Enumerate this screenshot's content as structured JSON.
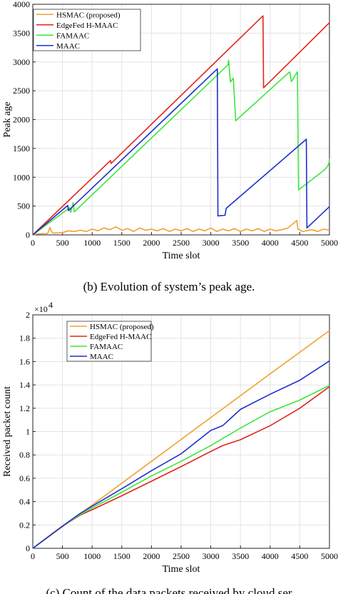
{
  "charts": [
    {
      "type": "line",
      "caption": "(b) Evolution of system’s peak age.",
      "xlabel": "Time slot",
      "ylabel": "Peak age",
      "xlim": [
        0,
        5000
      ],
      "ylim": [
        0,
        4000
      ],
      "xticks": [
        "0",
        "500",
        "1000",
        "1500",
        "2000",
        "2500",
        "3000",
        "3500",
        "4000",
        "4500",
        "5000"
      ],
      "yticks": [
        "0",
        "500",
        "1000",
        "1500",
        "2000",
        "2500",
        "3000",
        "3500",
        "4000"
      ],
      "grid": true,
      "legend_position": "top-left",
      "series": [
        {
          "name": "HSMAC (proposed)",
          "color": "#F0A030",
          "points": [
            [
              0,
              0
            ],
            [
              60,
              15
            ],
            [
              150,
              20
            ],
            [
              250,
              25
            ],
            [
              290,
              130
            ],
            [
              310,
              60
            ],
            [
              350,
              30
            ],
            [
              500,
              40
            ],
            [
              600,
              70
            ],
            [
              700,
              60
            ],
            [
              800,
              80
            ],
            [
              900,
              60
            ],
            [
              1000,
              100
            ],
            [
              1100,
              70
            ],
            [
              1200,
              120
            ],
            [
              1300,
              90
            ],
            [
              1400,
              140
            ],
            [
              1500,
              80
            ],
            [
              1600,
              110
            ],
            [
              1700,
              60
            ],
            [
              1800,
              120
            ],
            [
              1900,
              80
            ],
            [
              2000,
              100
            ],
            [
              2100,
              70
            ],
            [
              2200,
              110
            ],
            [
              2300,
              60
            ],
            [
              2400,
              100
            ],
            [
              2500,
              70
            ],
            [
              2600,
              110
            ],
            [
              2700,
              60
            ],
            [
              2800,
              100
            ],
            [
              2900,
              70
            ],
            [
              3000,
              120
            ],
            [
              3100,
              60
            ],
            [
              3200,
              100
            ],
            [
              3300,
              70
            ],
            [
              3400,
              110
            ],
            [
              3500,
              60
            ],
            [
              3600,
              100
            ],
            [
              3700,
              70
            ],
            [
              3800,
              110
            ],
            [
              3900,
              60
            ],
            [
              4000,
              100
            ],
            [
              4100,
              70
            ],
            [
              4200,
              90
            ],
            [
              4300,
              120
            ],
            [
              4450,
              250
            ],
            [
              4470,
              100
            ],
            [
              4550,
              60
            ],
            [
              4700,
              90
            ],
            [
              4800,
              60
            ],
            [
              4900,
              100
            ],
            [
              5000,
              80
            ]
          ]
        },
        {
          "name": "EdgeFed H-MAAC",
          "color": "#E4231B",
          "points": [
            [
              0,
              0
            ],
            [
              1310,
              1290
            ],
            [
              1320,
              1240
            ],
            [
              3880,
              3800
            ],
            [
              3890,
              2550
            ],
            [
              5000,
              3680
            ]
          ]
        },
        {
          "name": "FAMAAC",
          "color": "#3DE63D",
          "points": [
            [
              0,
              0
            ],
            [
              620,
              470
            ],
            [
              640,
              390
            ],
            [
              680,
              560
            ],
            [
              700,
              400
            ],
            [
              3290,
              2950
            ],
            [
              3300,
              3030
            ],
            [
              3330,
              2650
            ],
            [
              3380,
              2720
            ],
            [
              3420,
              1980
            ],
            [
              4330,
              2830
            ],
            [
              4360,
              2660
            ],
            [
              4460,
              2830
            ],
            [
              4480,
              780
            ],
            [
              4920,
              1130
            ],
            [
              4960,
              1180
            ],
            [
              4990,
              1240
            ],
            [
              5000,
              1320
            ]
          ]
        },
        {
          "name": "MAAC",
          "color": "#1F2FCC",
          "points": [
            [
              0,
              0
            ],
            [
              590,
              510
            ],
            [
              600,
              420
            ],
            [
              3110,
              2880
            ],
            [
              3120,
              330
            ],
            [
              3240,
              340
            ],
            [
              3260,
              460
            ],
            [
              4610,
              1660
            ],
            [
              4620,
              120
            ],
            [
              5000,
              490
            ]
          ]
        }
      ]
    },
    {
      "type": "line",
      "caption": "(c) Count of the data packets received by cloud ser",
      "xlabel": "Time slot",
      "ylabel": "Received packet count",
      "y_exponent": "×10",
      "y_exponent_power": "4",
      "xlim": [
        0,
        5000
      ],
      "ylim": [
        0,
        2
      ],
      "xticks": [
        "0",
        "500",
        "1000",
        "1500",
        "2000",
        "2500",
        "3000",
        "3500",
        "4000",
        "4500",
        "5000"
      ],
      "yticks": [
        "0",
        "0.2",
        "0.4",
        "0.6",
        "0.8",
        "1",
        "1.2",
        "1.4",
        "1.6",
        "1.8",
        "2"
      ],
      "grid": true,
      "legend_position": "top-left",
      "series": [
        {
          "name": "HSMAC (proposed)",
          "color": "#F0A030",
          "points": [
            [
              0,
              0
            ],
            [
              1000,
              0.37
            ],
            [
              2000,
              0.745
            ],
            [
              3000,
              1.12
            ],
            [
              4000,
              1.495
            ],
            [
              5000,
              1.865
            ]
          ]
        },
        {
          "name": "EdgeFed H-MAAC",
          "color": "#E4231B",
          "points": [
            [
              0,
              0
            ],
            [
              500,
              0.19
            ],
            [
              800,
              0.285
            ],
            [
              1000,
              0.33
            ],
            [
              1500,
              0.45
            ],
            [
              2000,
              0.575
            ],
            [
              2500,
              0.7
            ],
            [
              3000,
              0.83
            ],
            [
              3200,
              0.88
            ],
            [
              3500,
              0.93
            ],
            [
              4000,
              1.05
            ],
            [
              4500,
              1.2
            ],
            [
              5000,
              1.385
            ]
          ]
        },
        {
          "name": "FAMAAC",
          "color": "#3DE63D",
          "points": [
            [
              0,
              0
            ],
            [
              500,
              0.19
            ],
            [
              800,
              0.29
            ],
            [
              1000,
              0.345
            ],
            [
              1500,
              0.48
            ],
            [
              2000,
              0.62
            ],
            [
              2500,
              0.745
            ],
            [
              3000,
              0.88
            ],
            [
              3500,
              1.03
            ],
            [
              4000,
              1.17
            ],
            [
              4500,
              1.27
            ],
            [
              5000,
              1.395
            ]
          ]
        },
        {
          "name": "MAAC",
          "color": "#1F2FCC",
          "points": [
            [
              0,
              0
            ],
            [
              500,
              0.19
            ],
            [
              800,
              0.3
            ],
            [
              1000,
              0.36
            ],
            [
              1500,
              0.51
            ],
            [
              2000,
              0.665
            ],
            [
              2500,
              0.81
            ],
            [
              3000,
              1.01
            ],
            [
              3200,
              1.05
            ],
            [
              3500,
              1.19
            ],
            [
              4000,
              1.32
            ],
            [
              4500,
              1.44
            ],
            [
              5000,
              1.605
            ]
          ]
        }
      ]
    }
  ]
}
